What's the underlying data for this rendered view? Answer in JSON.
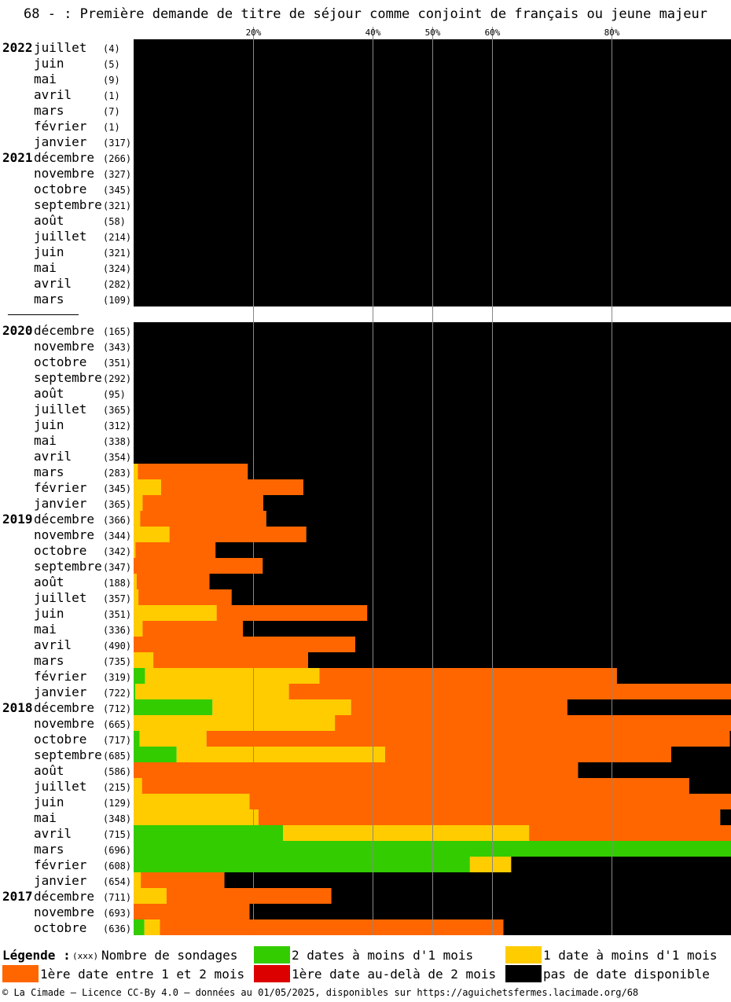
{
  "title": "68 - : Première demande de titre de séjour comme conjoint de français ou jeune majeur",
  "colors": {
    "green": "#33cc00",
    "yellow": "#ffcc00",
    "orange": "#ff6600",
    "red": "#dd0000",
    "black": "#000000",
    "grid": "#888888"
  },
  "chart_data": {
    "type": "bar",
    "orientation": "horizontal-stacked",
    "xlim": [
      0,
      100
    ],
    "xticks": [
      {
        "value": 20,
        "label": "20%"
      },
      {
        "value": 40,
        "label": "40%"
      },
      {
        "value": 50,
        "label": "50%"
      },
      {
        "value": 60,
        "label": "60%"
      },
      {
        "value": 80,
        "label": "80%"
      }
    ],
    "series": [
      {
        "name": "2 dates à moins d'1 mois",
        "color": "#33cc00"
      },
      {
        "name": "1 date à moins d'1 mois",
        "color": "#ffcc00"
      },
      {
        "name": "1ère date entre 1 et 2 mois",
        "color": "#ff6600"
      },
      {
        "name": "1ère date au-delà de 2 mois",
        "color": "#dd0000"
      },
      {
        "name": "pas de date disponible",
        "color": "#000000"
      }
    ],
    "rows": [
      {
        "year": "2022",
        "month": "juillet",
        "count": "(4)",
        "values": [
          0,
          0,
          0,
          0,
          100
        ]
      },
      {
        "year": "",
        "month": "juin",
        "count": "(5)",
        "values": [
          0,
          0,
          0,
          0,
          100
        ]
      },
      {
        "year": "",
        "month": "mai",
        "count": "(9)",
        "values": [
          0,
          0,
          0,
          0,
          100
        ]
      },
      {
        "year": "",
        "month": "avril",
        "count": "(1)",
        "values": [
          0,
          0,
          0,
          0,
          100
        ]
      },
      {
        "year": "",
        "month": "mars",
        "count": "(7)",
        "values": [
          0,
          0,
          0,
          0,
          100
        ]
      },
      {
        "year": "",
        "month": "février",
        "count": "(1)",
        "values": [
          0,
          0,
          0,
          0,
          100
        ]
      },
      {
        "year": "",
        "month": "janvier",
        "count": "(317)",
        "values": [
          0,
          0,
          0,
          0,
          100
        ]
      },
      {
        "year": "2021",
        "month": "décembre",
        "count": "(266)",
        "values": [
          0,
          0,
          0,
          0,
          100
        ]
      },
      {
        "year": "",
        "month": "novembre",
        "count": "(327)",
        "values": [
          0,
          0,
          0,
          0,
          100
        ]
      },
      {
        "year": "",
        "month": "octobre",
        "count": "(345)",
        "values": [
          0,
          0,
          0,
          0,
          100
        ]
      },
      {
        "year": "",
        "month": "septembre",
        "count": "(321)",
        "values": [
          0,
          0,
          0,
          0,
          100
        ]
      },
      {
        "year": "",
        "month": "août",
        "count": "(58)",
        "values": [
          0,
          0,
          0,
          0,
          100
        ]
      },
      {
        "year": "",
        "month": "juillet",
        "count": "(214)",
        "values": [
          0,
          0,
          0,
          0,
          100
        ]
      },
      {
        "year": "",
        "month": "juin",
        "count": "(321)",
        "values": [
          0,
          0,
          0,
          0,
          100
        ]
      },
      {
        "year": "",
        "month": "mai",
        "count": "(324)",
        "values": [
          0,
          0,
          0,
          0,
          100
        ]
      },
      {
        "year": "",
        "month": "avril",
        "count": "(282)",
        "values": [
          0,
          0,
          0,
          0,
          100
        ]
      },
      {
        "year": "",
        "month": "mars",
        "count": "(109)",
        "values": [
          0,
          0,
          0,
          0,
          100
        ]
      },
      {
        "gap": true
      },
      {
        "year": "2020",
        "month": "décembre",
        "count": "(165)",
        "values": [
          0,
          0,
          0,
          0,
          100
        ]
      },
      {
        "year": "",
        "month": "novembre",
        "count": "(343)",
        "values": [
          0,
          0,
          0,
          0,
          100
        ]
      },
      {
        "year": "",
        "month": "octobre",
        "count": "(351)",
        "values": [
          0,
          0,
          0,
          0,
          100
        ]
      },
      {
        "year": "",
        "month": "septembre",
        "count": "(292)",
        "values": [
          0,
          0,
          0,
          0,
          100
        ]
      },
      {
        "year": "",
        "month": "août",
        "count": "(95)",
        "values": [
          0,
          0,
          0,
          0,
          100
        ]
      },
      {
        "year": "",
        "month": "juillet",
        "count": "(365)",
        "values": [
          0,
          0,
          0,
          0,
          100
        ]
      },
      {
        "year": "",
        "month": "juin",
        "count": "(312)",
        "values": [
          0,
          0,
          0,
          0,
          100
        ]
      },
      {
        "year": "",
        "month": "mai",
        "count": "(338)",
        "values": [
          0,
          0,
          0,
          0,
          100
        ]
      },
      {
        "year": "",
        "month": "avril",
        "count": "(354)",
        "values": [
          0,
          0,
          0,
          0,
          100
        ]
      },
      {
        "year": "",
        "month": "mars",
        "count": "(283)",
        "values": [
          0,
          0.7,
          18.4,
          0,
          80.9
        ]
      },
      {
        "year": "",
        "month": "février",
        "count": "(345)",
        "values": [
          0,
          4.6,
          23.8,
          0,
          71.6
        ]
      },
      {
        "year": "",
        "month": "janvier",
        "count": "(365)",
        "values": [
          0,
          1.5,
          20.2,
          0,
          78.3
        ]
      },
      {
        "year": "2019",
        "month": "décembre",
        "count": "(366)",
        "values": [
          0,
          1.1,
          21.1,
          0,
          77.8
        ]
      },
      {
        "year": "",
        "month": "novembre",
        "count": "(344)",
        "values": [
          0,
          6.0,
          22.9,
          0,
          71.1
        ]
      },
      {
        "year": "",
        "month": "octobre",
        "count": "(342)",
        "values": [
          0,
          0.3,
          13.4,
          0,
          86.3
        ]
      },
      {
        "year": "",
        "month": "septembre",
        "count": "(347)",
        "values": [
          0,
          0,
          21.6,
          0,
          78.4
        ]
      },
      {
        "year": "",
        "month": "août",
        "count": "(188)",
        "values": [
          0,
          0.5,
          12.2,
          0,
          87.3
        ]
      },
      {
        "year": "",
        "month": "juillet",
        "count": "(357)",
        "values": [
          0,
          0.8,
          15.6,
          0,
          83.6
        ]
      },
      {
        "year": "",
        "month": "juin",
        "count": "(351)",
        "values": [
          0,
          13.9,
          25.2,
          0,
          60.9
        ]
      },
      {
        "year": "",
        "month": "mai",
        "count": "(336)",
        "values": [
          0,
          1.5,
          16.8,
          0,
          81.7
        ]
      },
      {
        "year": "",
        "month": "avril",
        "count": "(490)",
        "values": [
          0,
          0,
          37.1,
          0,
          62.9
        ]
      },
      {
        "year": "",
        "month": "mars",
        "count": "(735)",
        "values": [
          0,
          3.3,
          25.9,
          0,
          70.8
        ]
      },
      {
        "year": "",
        "month": "février",
        "count": "(319)",
        "values": [
          1.9,
          29.2,
          49.8,
          0,
          19.1
        ]
      },
      {
        "year": "",
        "month": "janvier",
        "count": "(722)",
        "values": [
          0.3,
          25.7,
          74.0,
          0,
          0
        ]
      },
      {
        "year": "2018",
        "month": "décembre",
        "count": "(712)",
        "values": [
          13.2,
          23.2,
          36.2,
          0,
          27.4
        ]
      },
      {
        "year": "",
        "month": "novembre",
        "count": "(665)",
        "values": [
          0,
          33.7,
          66.3,
          0,
          0
        ]
      },
      {
        "year": "",
        "month": "octobre",
        "count": "(717)",
        "values": [
          1.0,
          11.2,
          87.6,
          0,
          0.2
        ]
      },
      {
        "year": "",
        "month": "septembre",
        "count": "(685)",
        "values": [
          7.2,
          34.9,
          47.9,
          0,
          10.0
        ]
      },
      {
        "year": "",
        "month": "août",
        "count": "(586)",
        "values": [
          0,
          0,
          74.4,
          0,
          25.6
        ]
      },
      {
        "year": "",
        "month": "juillet",
        "count": "(215)",
        "values": [
          0,
          1.4,
          91.6,
          0,
          7.0
        ]
      },
      {
        "year": "",
        "month": "juin",
        "count": "(129)",
        "values": [
          0,
          19.4,
          80.6,
          0,
          0
        ]
      },
      {
        "year": "",
        "month": "mai",
        "count": "(348)",
        "values": [
          0,
          20.9,
          77.3,
          0,
          1.8
        ]
      },
      {
        "year": "",
        "month": "avril",
        "count": "(715)",
        "values": [
          25.0,
          41.2,
          33.8,
          0,
          0
        ]
      },
      {
        "year": "",
        "month": "mars",
        "count": "(696)",
        "values": [
          100,
          0,
          0,
          0,
          0
        ]
      },
      {
        "year": "",
        "month": "février",
        "count": "(608)",
        "values": [
          56.3,
          6.9,
          0,
          0,
          36.8
        ]
      },
      {
        "year": "",
        "month": "janvier",
        "count": "(654)",
        "values": [
          0,
          1.2,
          14.0,
          0,
          84.8
        ]
      },
      {
        "year": "2017",
        "month": "décembre",
        "count": "(711)",
        "values": [
          0,
          5.5,
          27.6,
          0,
          66.9
        ]
      },
      {
        "year": "",
        "month": "novembre",
        "count": "(693)",
        "values": [
          0,
          0,
          19.4,
          0,
          80.6
        ]
      },
      {
        "year": "",
        "month": "octobre",
        "count": "(636)",
        "values": [
          1.8,
          2.6,
          57.5,
          0,
          38.1
        ]
      }
    ]
  },
  "legend": {
    "heading": "Légende :",
    "count_marker": "(xxx)",
    "count_label": "Nombre de sondages",
    "items": [
      {
        "label": "2 dates à moins d'1 mois",
        "color": "#33cc00"
      },
      {
        "label": "1 date à moins d'1 mois",
        "color": "#ffcc00"
      },
      {
        "label": "1ère date entre 1 et 2 mois",
        "color": "#ff6600"
      },
      {
        "label": "1ère date au-delà de 2 mois",
        "color": "#dd0000"
      },
      {
        "label": "pas de date disponible",
        "color": "#000000"
      }
    ]
  },
  "credits": "© La Cimade – Licence CC-By 4.0 – données au 01/05/2025, disponibles sur https://aguichetsfermes.lacimade.org/68"
}
